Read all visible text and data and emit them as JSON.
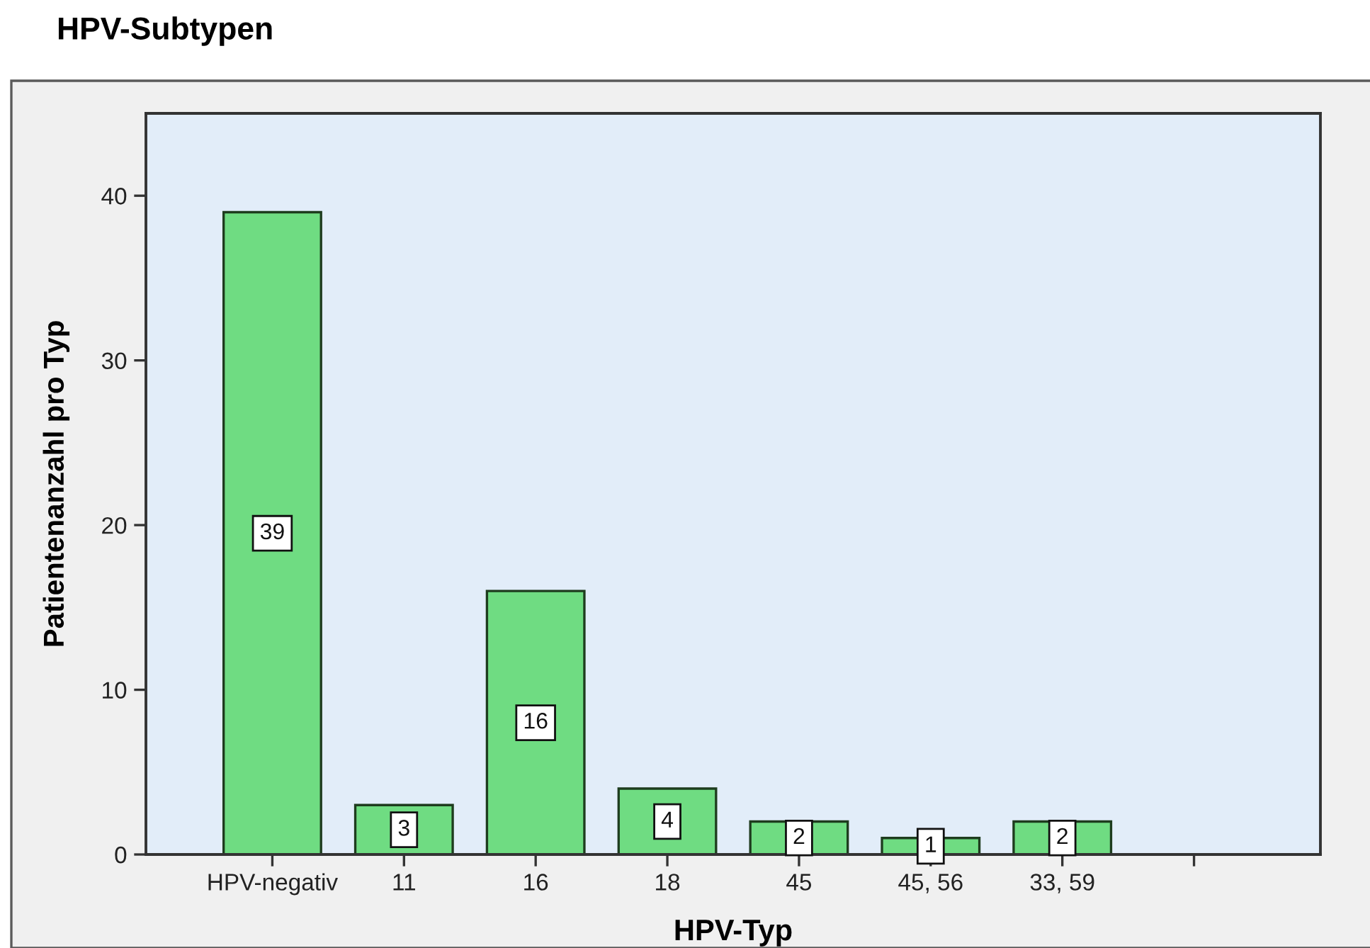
{
  "chart_data": {
    "type": "bar",
    "title": "HPV-Subtypen",
    "xlabel": "HPV-Typ",
    "ylabel": "Patientenanzahl pro Typ",
    "categories": [
      "HPV-negativ",
      "11",
      "16",
      "18",
      "45",
      "45, 56",
      "33, 59",
      null
    ],
    "values": [
      39,
      3,
      16,
      4,
      2,
      1,
      2,
      null
    ],
    "color": "#6fdc82",
    "ylim": [
      0,
      45
    ],
    "yticks": [
      0,
      10,
      20,
      30,
      40
    ],
    "data_labels": true
  }
}
